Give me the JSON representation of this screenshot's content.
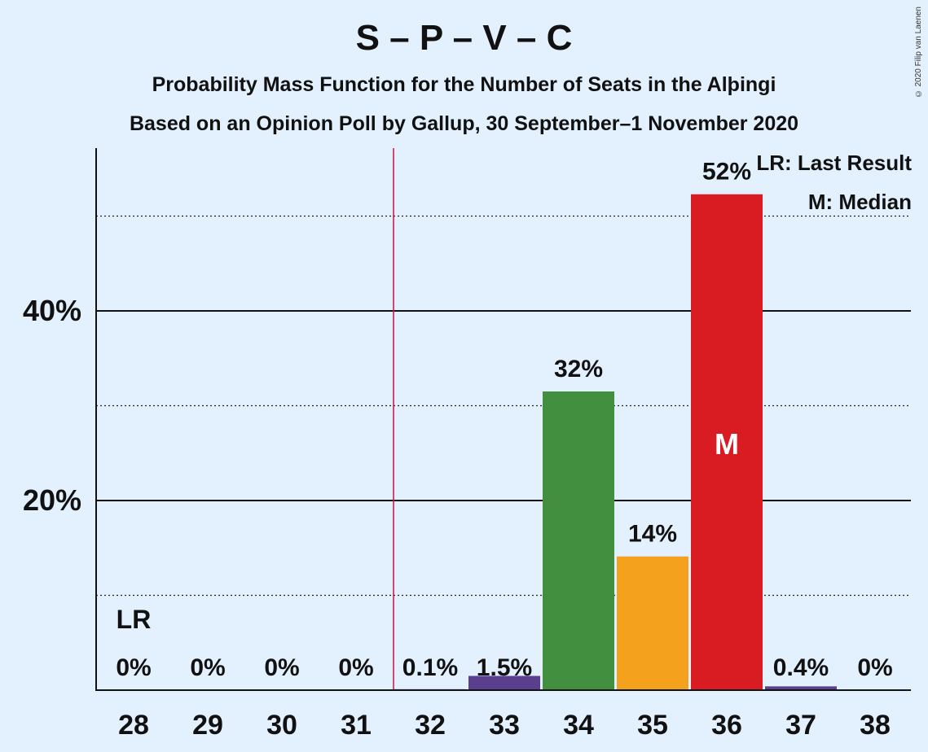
{
  "chart_data": {
    "type": "bar",
    "title": "S – P – V – C",
    "subtitle": "Probability Mass Function for the Number of Seats in the Alþingi",
    "subtitle2": "Based on an Opinion Poll by Gallup, 30 September–1 November 2020",
    "copyright": "© 2020 Filip van Laenen",
    "categories": [
      "28",
      "29",
      "30",
      "31",
      "32",
      "33",
      "34",
      "35",
      "36",
      "37",
      "38"
    ],
    "values": [
      0,
      0,
      0,
      0,
      0.1,
      1.5,
      31.5,
      14.1,
      52.3,
      0.4,
      0
    ],
    "labels": [
      "0%",
      "0%",
      "0%",
      "0%",
      "0.1%",
      "1.5%",
      "32%",
      "14%",
      "52%",
      "0.4%",
      "0%"
    ],
    "colors": [
      "#5b3f8f",
      "#5b3f8f",
      "#5b3f8f",
      "#5b3f8f",
      "#5b3f8f",
      "#5b3f8f",
      "#428f3f",
      "#f4a21d",
      "#d91b22",
      "#5b3f8f",
      "#5b3f8f"
    ],
    "yticks": [
      "20%",
      "40%"
    ],
    "ylim": [
      0,
      57
    ],
    "last_result_label": "LR",
    "median_label": "M",
    "legend": {
      "lr": "LR: Last Result",
      "m": "M: Median"
    },
    "majority_line_color": "#d0103a"
  }
}
